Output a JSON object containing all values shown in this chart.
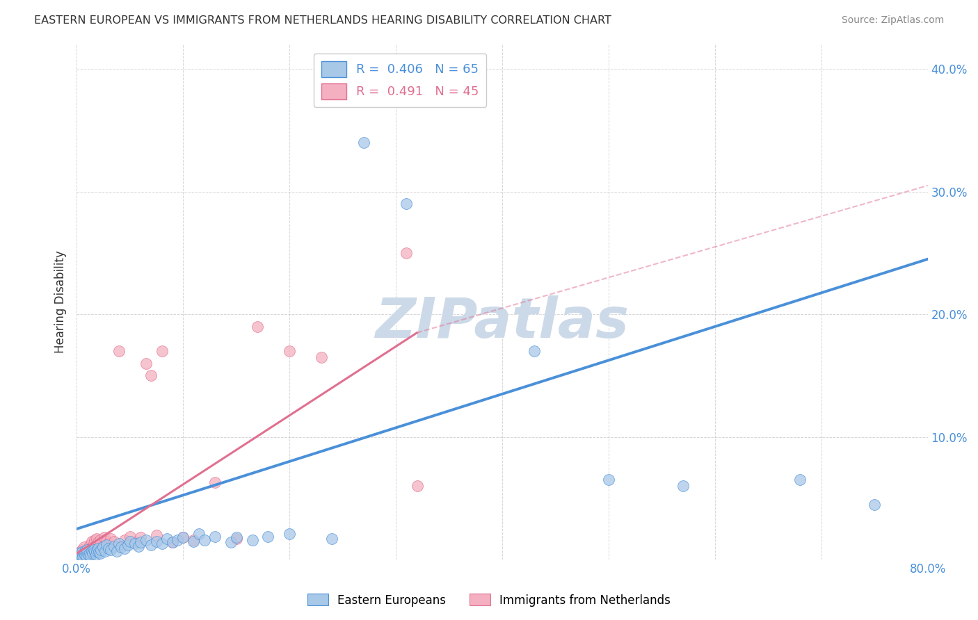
{
  "title": "EASTERN EUROPEAN VS IMMIGRANTS FROM NETHERLANDS HEARING DISABILITY CORRELATION CHART",
  "source": "Source: ZipAtlas.com",
  "ylabel": "Hearing Disability",
  "xlim": [
    0.0,
    0.8
  ],
  "ylim": [
    0.0,
    0.42
  ],
  "xticks": [
    0.0,
    0.1,
    0.2,
    0.3,
    0.4,
    0.5,
    0.6,
    0.7,
    0.8
  ],
  "yticks": [
    0.0,
    0.1,
    0.2,
    0.3,
    0.4
  ],
  "blue_R": 0.406,
  "blue_N": 65,
  "pink_R": 0.491,
  "pink_N": 45,
  "blue_color": "#a8c8e8",
  "pink_color": "#f4b0c0",
  "blue_line_color": "#4a90d9",
  "pink_line_color": "#e07090",
  "pink_line_dashed_color": "#e8b0c0",
  "legend_label_blue": "Eastern Europeans",
  "legend_label_pink": "Immigrants from Netherlands",
  "blue_scatter": [
    [
      0.002,
      0.005
    ],
    [
      0.003,
      0.003
    ],
    [
      0.004,
      0.004
    ],
    [
      0.005,
      0.002
    ],
    [
      0.005,
      0.006
    ],
    [
      0.006,
      0.003
    ],
    [
      0.007,
      0.005
    ],
    [
      0.008,
      0.004
    ],
    [
      0.008,
      0.007
    ],
    [
      0.009,
      0.003
    ],
    [
      0.01,
      0.006
    ],
    [
      0.01,
      0.008
    ],
    [
      0.011,
      0.004
    ],
    [
      0.012,
      0.005
    ],
    [
      0.013,
      0.003
    ],
    [
      0.014,
      0.007
    ],
    [
      0.015,
      0.005
    ],
    [
      0.016,
      0.008
    ],
    [
      0.017,
      0.006
    ],
    [
      0.018,
      0.004
    ],
    [
      0.019,
      0.007
    ],
    [
      0.02,
      0.009
    ],
    [
      0.021,
      0.006
    ],
    [
      0.022,
      0.005
    ],
    [
      0.023,
      0.008
    ],
    [
      0.025,
      0.01
    ],
    [
      0.027,
      0.007
    ],
    [
      0.028,
      0.012
    ],
    [
      0.03,
      0.009
    ],
    [
      0.032,
      0.008
    ],
    [
      0.035,
      0.011
    ],
    [
      0.038,
      0.007
    ],
    [
      0.04,
      0.013
    ],
    [
      0.042,
      0.01
    ],
    [
      0.045,
      0.009
    ],
    [
      0.048,
      0.012
    ],
    [
      0.05,
      0.015
    ],
    [
      0.055,
      0.013
    ],
    [
      0.058,
      0.011
    ],
    [
      0.06,
      0.014
    ],
    [
      0.065,
      0.016
    ],
    [
      0.07,
      0.012
    ],
    [
      0.075,
      0.015
    ],
    [
      0.08,
      0.013
    ],
    [
      0.085,
      0.017
    ],
    [
      0.09,
      0.014
    ],
    [
      0.095,
      0.016
    ],
    [
      0.1,
      0.018
    ],
    [
      0.11,
      0.015
    ],
    [
      0.115,
      0.021
    ],
    [
      0.12,
      0.016
    ],
    [
      0.13,
      0.019
    ],
    [
      0.145,
      0.014
    ],
    [
      0.15,
      0.018
    ],
    [
      0.165,
      0.016
    ],
    [
      0.18,
      0.019
    ],
    [
      0.2,
      0.021
    ],
    [
      0.24,
      0.017
    ],
    [
      0.27,
      0.34
    ],
    [
      0.31,
      0.29
    ],
    [
      0.43,
      0.17
    ],
    [
      0.5,
      0.065
    ],
    [
      0.57,
      0.06
    ],
    [
      0.68,
      0.065
    ],
    [
      0.75,
      0.045
    ]
  ],
  "pink_scatter": [
    [
      0.002,
      0.004
    ],
    [
      0.003,
      0.006
    ],
    [
      0.004,
      0.003
    ],
    [
      0.005,
      0.008
    ],
    [
      0.006,
      0.005
    ],
    [
      0.007,
      0.01
    ],
    [
      0.008,
      0.006
    ],
    [
      0.009,
      0.004
    ],
    [
      0.01,
      0.007
    ],
    [
      0.011,
      0.009
    ],
    [
      0.012,
      0.012
    ],
    [
      0.013,
      0.008
    ],
    [
      0.014,
      0.015
    ],
    [
      0.015,
      0.01
    ],
    [
      0.016,
      0.013
    ],
    [
      0.017,
      0.016
    ],
    [
      0.018,
      0.012
    ],
    [
      0.019,
      0.017
    ],
    [
      0.02,
      0.014
    ],
    [
      0.022,
      0.016
    ],
    [
      0.024,
      0.011
    ],
    [
      0.026,
      0.018
    ],
    [
      0.028,
      0.015
    ],
    [
      0.03,
      0.013
    ],
    [
      0.032,
      0.017
    ],
    [
      0.035,
      0.015
    ],
    [
      0.04,
      0.17
    ],
    [
      0.045,
      0.016
    ],
    [
      0.05,
      0.019
    ],
    [
      0.055,
      0.014
    ],
    [
      0.06,
      0.018
    ],
    [
      0.065,
      0.16
    ],
    [
      0.07,
      0.15
    ],
    [
      0.075,
      0.02
    ],
    [
      0.08,
      0.17
    ],
    [
      0.09,
      0.014
    ],
    [
      0.1,
      0.018
    ],
    [
      0.11,
      0.016
    ],
    [
      0.13,
      0.063
    ],
    [
      0.15,
      0.017
    ],
    [
      0.17,
      0.19
    ],
    [
      0.2,
      0.17
    ],
    [
      0.23,
      0.165
    ],
    [
      0.31,
      0.25
    ],
    [
      0.32,
      0.06
    ]
  ],
  "blue_trendline": [
    [
      0.0,
      0.025
    ],
    [
      0.8,
      0.245
    ]
  ],
  "pink_trendline": [
    [
      0.0,
      0.005
    ],
    [
      0.32,
      0.185
    ]
  ],
  "pink_trendline_dashed": [
    [
      0.32,
      0.185
    ],
    [
      0.8,
      0.305
    ]
  ],
  "background_color": "#ffffff",
  "watermark": "ZIPatlas",
  "watermark_color": "#ccd9e8",
  "tick_color": "#4a90d9",
  "title_color": "#333333",
  "source_color": "#888888",
  "grid_color": "#cccccc"
}
